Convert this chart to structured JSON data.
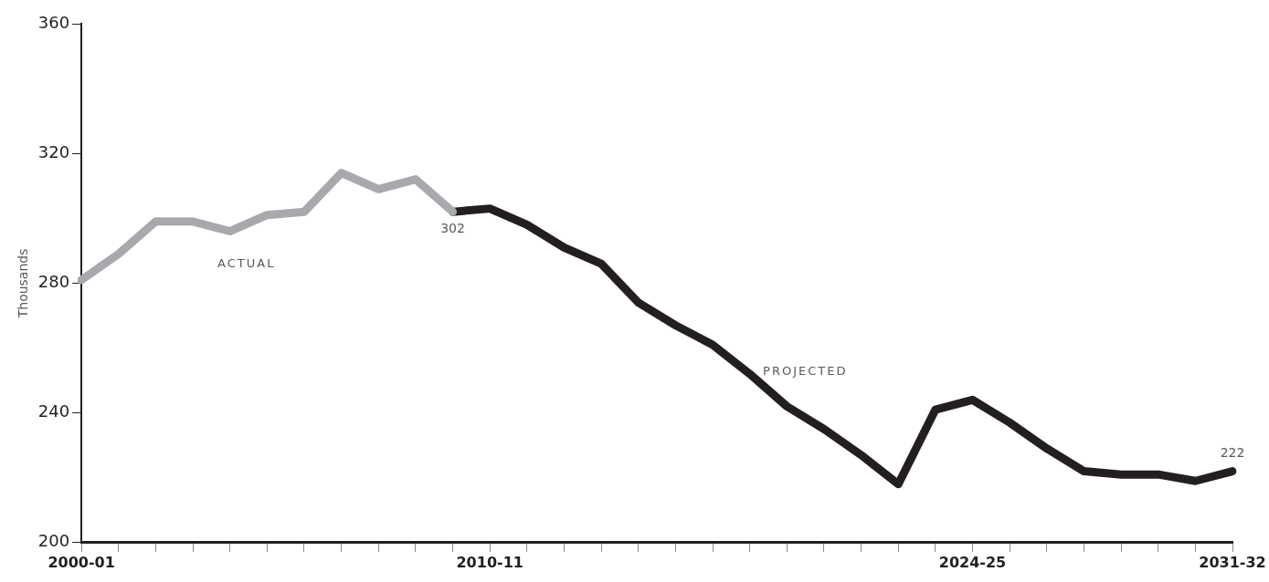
{
  "chart_data": {
    "type": "line",
    "ylabel": "Thousands",
    "categories": [
      "2000-01",
      null,
      null,
      null,
      null,
      null,
      null,
      null,
      null,
      null,
      null,
      "2010-11",
      null,
      null,
      null,
      null,
      null,
      null,
      null,
      null,
      null,
      null,
      null,
      null,
      "2024-25",
      null,
      null,
      null,
      null,
      null,
      null,
      "2031-32"
    ],
    "series": [
      {
        "name": "ACTUAL",
        "color": "#a7a9ac",
        "values": [
          281,
          289,
          299,
          299,
          296,
          301,
          302,
          314,
          309,
          312,
          302,
          null,
          null,
          null,
          null,
          null,
          null,
          null,
          null,
          null,
          null,
          null,
          null,
          null,
          null,
          null,
          null,
          null,
          null,
          null,
          null,
          null
        ]
      },
      {
        "name": "PROJECTED",
        "color": "#231f20",
        "values": [
          null,
          null,
          null,
          null,
          null,
          null,
          null,
          null,
          null,
          null,
          302,
          303,
          298,
          291,
          286,
          274,
          267,
          261,
          252,
          242,
          235,
          227,
          218,
          241,
          244,
          237,
          229,
          222,
          221,
          221,
          219,
          222
        ],
        "value_labels": [
          null,
          null,
          null,
          null,
          null,
          null,
          null,
          null,
          null,
          null,
          "302",
          null,
          null,
          null,
          null,
          null,
          null,
          null,
          null,
          null,
          null,
          null,
          null,
          null,
          null,
          null,
          null,
          null,
          null,
          null,
          null,
          "222"
        ]
      }
    ],
    "ylim": [
      200,
      360
    ],
    "yticks": [
      200,
      240,
      280,
      320,
      360
    ],
    "grid": false,
    "legend": false,
    "marker": "none",
    "line_style": "solid"
  }
}
